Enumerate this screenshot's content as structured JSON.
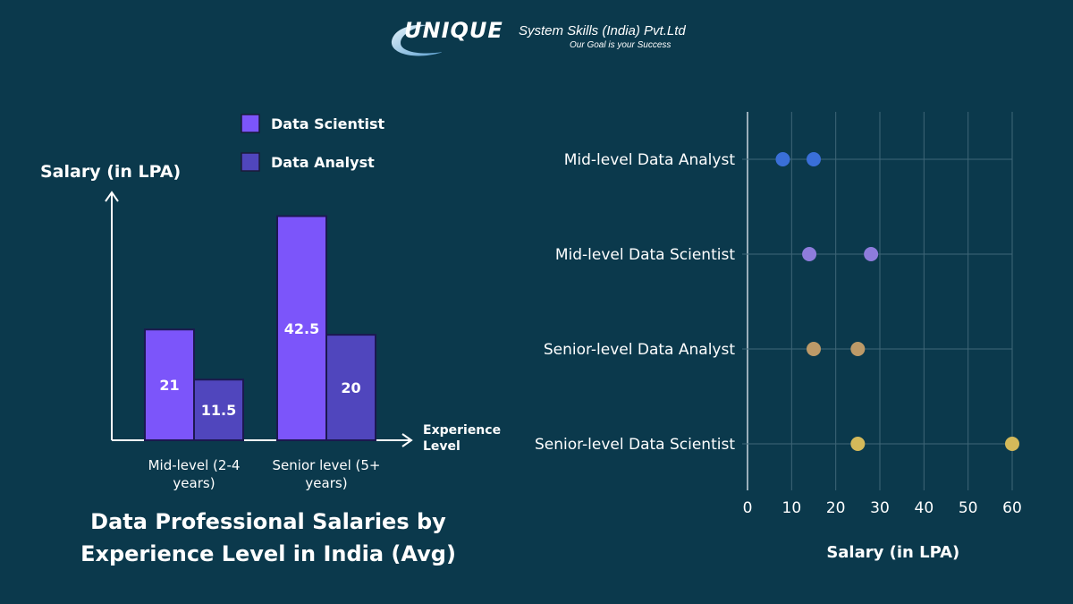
{
  "brand": {
    "name": "UNIQUE",
    "company": "System Skills (India) Pvt.Ltd",
    "tagline": "Our Goal is your Success"
  },
  "caption": {
    "line1": "Data Professional Salaries by",
    "line2": "Experience Level in India (Avg)"
  },
  "colors": {
    "background": "#0b394c",
    "data_scientist": "#7c55fa",
    "data_analyst": "#5046bd",
    "dot_mid_analyst": "#3a6fd8",
    "dot_mid_scientist": "#8e7cdc",
    "dot_senior_analyst": "#bd9a68",
    "dot_senior_scientist": "#d4b95a"
  },
  "chart_data": [
    {
      "type": "bar",
      "ylabel": "Salary (in LPA)",
      "xlabel_lines": [
        "Experience",
        "Level"
      ],
      "categories": [
        {
          "lines": [
            "Mid-level (2-4",
            "years)"
          ]
        },
        {
          "lines": [
            "Senior level (5+",
            "years)"
          ]
        }
      ],
      "series": [
        {
          "name": "Data Scientist",
          "values": [
            21,
            42.5
          ],
          "labels": [
            "21",
            "42.5"
          ],
          "color_key": "data_scientist"
        },
        {
          "name": "Data Analyst",
          "values": [
            11.5,
            20
          ],
          "labels": [
            "11.5",
            "20"
          ],
          "color_key": "data_analyst"
        }
      ],
      "ylim": [
        0,
        47
      ],
      "legend": "top",
      "grid": false
    },
    {
      "type": "scatter",
      "categories": [
        "Mid-level Data Analyst",
        "Mid-level Data Scientist",
        "Senior-level Data Analyst",
        "Senior-level Data Scientist"
      ],
      "points": [
        {
          "category": "Mid-level Data Analyst",
          "x": [
            8,
            15
          ],
          "color_key": "dot_mid_analyst"
        },
        {
          "category": "Mid-level Data Scientist",
          "x": [
            14,
            28
          ],
          "color_key": "dot_mid_scientist"
        },
        {
          "category": "Senior-level Data Analyst",
          "x": [
            15,
            25
          ],
          "color_key": "dot_senior_analyst"
        },
        {
          "category": "Senior-level Data Scientist",
          "x": [
            25,
            60
          ],
          "color_key": "dot_senior_scientist"
        }
      ],
      "xlabel": "Salary (in LPA)",
      "xticks": [
        "0",
        "10",
        "20",
        "30",
        "40",
        "50",
        "60"
      ],
      "xlim": [
        0,
        60
      ],
      "grid": true
    }
  ]
}
